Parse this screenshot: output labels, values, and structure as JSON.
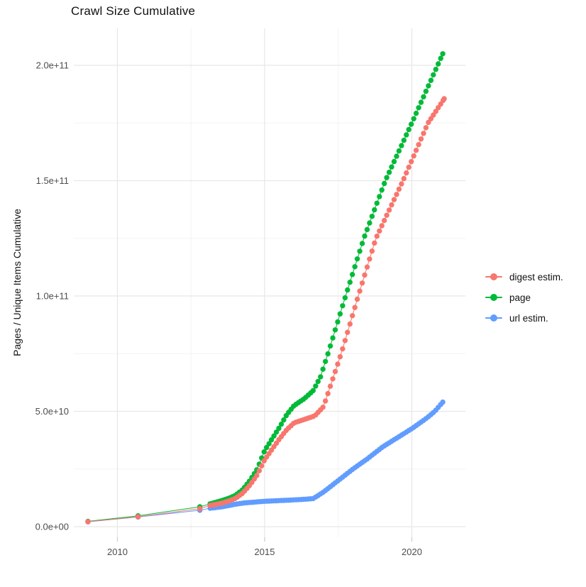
{
  "title": "Crawl Size Cumulative",
  "y_axis": {
    "title": "Pages / Unique Items Cumulative",
    "ticks": [
      {
        "label": "0.0e+00",
        "billions": 0
      },
      {
        "label": "5.0e+10",
        "billions": 50
      },
      {
        "label": "1.0e+11",
        "billions": 100
      },
      {
        "label": "1.5e+11",
        "billions": 150
      },
      {
        "label": "2.0e+11",
        "billions": 200
      }
    ],
    "minor_billions": [
      25,
      75,
      125,
      175
    ]
  },
  "x_axis": {
    "ticks": [
      {
        "label": "2010",
        "year": 2010
      },
      {
        "label": "2015",
        "year": 2015
      },
      {
        "label": "2020",
        "year": 2020
      }
    ],
    "minor_years": [
      2012.5,
      2017.5
    ]
  },
  "legend": {
    "items": [
      {
        "label": "digest estim.",
        "color": "#F8766D"
      },
      {
        "label": "page",
        "color": "#00BA38"
      },
      {
        "label": "url estim.",
        "color": "#619CFF"
      }
    ]
  },
  "chart_data": {
    "type": "scatter",
    "style": "points connected by thin same-color lines (cumulative curves)",
    "title": "Crawl Size Cumulative",
    "xlabel": "",
    "ylabel": "Pages / Unique Items Cumulative",
    "x_unit": "year (decimal)",
    "y_unit": "count; value = billions x 1e9",
    "x_range": [
      2008.5,
      2021.8
    ],
    "y_range_billions": [
      0,
      215
    ],
    "grid": true,
    "legend_position": "right-center",
    "point_interval_years": 0.0833,
    "draw_order": [
      "page",
      "url estim.",
      "digest estim."
    ],
    "series": [
      {
        "name": "digest estim.",
        "color": "#F8766D",
        "sparse_points_billions": [
          [
            2009.0,
            2.2
          ],
          [
            2010.7,
            4.3
          ],
          [
            2012.8,
            7.8
          ]
        ],
        "anchors_billions": [
          [
            2013.15,
            9.2
          ],
          [
            2013.55,
            10.2
          ],
          [
            2013.8,
            11.2
          ],
          [
            2014.0,
            12.2
          ],
          [
            2014.25,
            14.5
          ],
          [
            2014.5,
            18
          ],
          [
            2014.75,
            22.5
          ],
          [
            2015.0,
            29
          ],
          [
            2015.25,
            33.5
          ],
          [
            2015.5,
            38
          ],
          [
            2015.75,
            42
          ],
          [
            2016.0,
            45
          ],
          [
            2016.35,
            46.5
          ],
          [
            2016.7,
            48
          ],
          [
            2017.0,
            52
          ],
          [
            2017.6,
            75
          ],
          [
            2018.18,
            100
          ],
          [
            2018.78,
            125
          ],
          [
            2019.7,
            150
          ],
          [
            2020.55,
            175
          ],
          [
            2021.1,
            185.5
          ]
        ]
      },
      {
        "name": "page",
        "color": "#00BA38",
        "sparse_points_billions": [
          [
            2009.0,
            2.3
          ],
          [
            2010.7,
            4.7
          ],
          [
            2012.8,
            8.6
          ]
        ],
        "anchors_billions": [
          [
            2013.15,
            9.9
          ],
          [
            2013.55,
            11.3
          ],
          [
            2013.8,
            12.4
          ],
          [
            2014.0,
            13.5
          ],
          [
            2014.25,
            16
          ],
          [
            2014.5,
            20
          ],
          [
            2014.75,
            25
          ],
          [
            2015.0,
            33
          ],
          [
            2015.25,
            38
          ],
          [
            2015.5,
            43
          ],
          [
            2015.75,
            48.5
          ],
          [
            2016.0,
            52.5
          ],
          [
            2016.35,
            55.5
          ],
          [
            2016.65,
            59
          ],
          [
            2016.9,
            65
          ],
          [
            2017.2,
            77
          ],
          [
            2017.75,
            100
          ],
          [
            2018.37,
            125
          ],
          [
            2019.1,
            150
          ],
          [
            2020.0,
            175
          ],
          [
            2021.05,
            205
          ]
        ]
      },
      {
        "name": "url estim.",
        "color": "#619CFF",
        "sparse_points_billions": [
          [
            2009.0,
            2.1
          ],
          [
            2010.7,
            4.2
          ],
          [
            2012.8,
            7.1
          ]
        ],
        "anchors_billions": [
          [
            2013.15,
            8.0
          ],
          [
            2013.55,
            8.6
          ],
          [
            2013.8,
            9.2
          ],
          [
            2014.0,
            9.7
          ],
          [
            2014.3,
            10.3
          ],
          [
            2014.6,
            10.6
          ],
          [
            2015.0,
            11.0
          ],
          [
            2015.5,
            11.3
          ],
          [
            2016.0,
            11.6
          ],
          [
            2016.5,
            12.0
          ],
          [
            2016.65,
            12.2
          ],
          [
            2016.78,
            13.2
          ],
          [
            2017.0,
            15.0
          ],
          [
            2017.5,
            20
          ],
          [
            2018.0,
            25
          ],
          [
            2018.5,
            29.5
          ],
          [
            2019.0,
            34.5
          ],
          [
            2019.5,
            38.5
          ],
          [
            2020.0,
            42.5
          ],
          [
            2020.5,
            47
          ],
          [
            2020.78,
            50
          ],
          [
            2021.05,
            54
          ]
        ]
      }
    ]
  },
  "colors": {
    "grid_major": "#e7e7e7",
    "grid_minor": "#f3f3f3",
    "axis_text": "#4d4d4d",
    "tick_mark": "#cccccc",
    "text": "#111111"
  }
}
